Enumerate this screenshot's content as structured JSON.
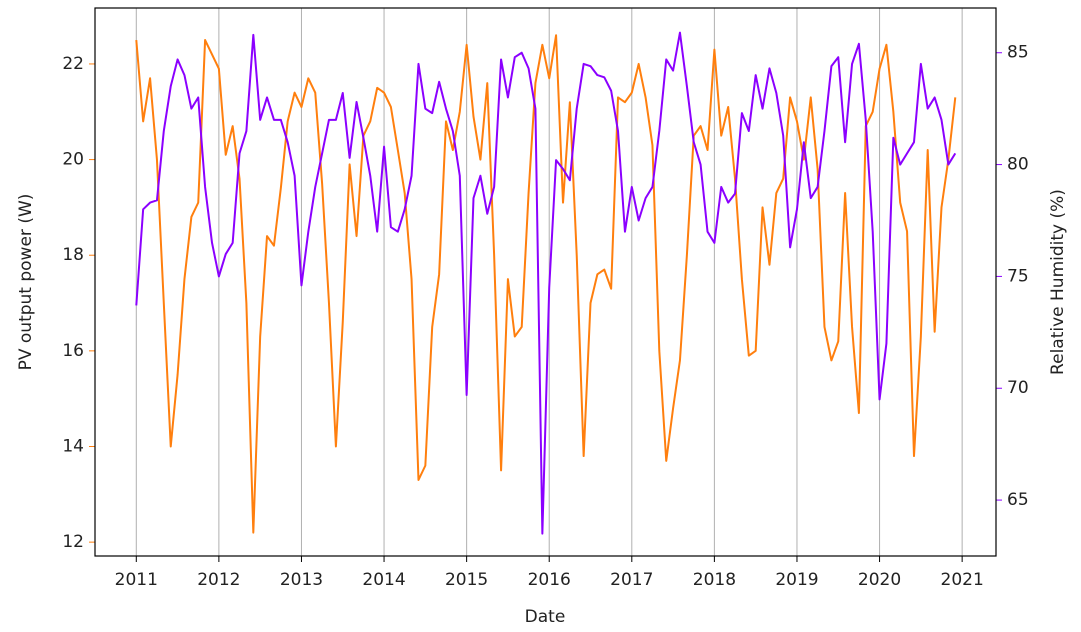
{
  "chart_data": {
    "type": "line",
    "xlabel": "Date",
    "ylabel": "PV output power (W)",
    "y2label": "Relative Humidity (%)",
    "x": [
      2011,
      2011.083,
      2011.167,
      2011.25,
      2011.333,
      2011.417,
      2011.5,
      2011.583,
      2011.667,
      2011.75,
      2011.833,
      2011.917,
      2012,
      2012.083,
      2012.167,
      2012.25,
      2012.333,
      2012.417,
      2012.5,
      2012.583,
      2012.667,
      2012.75,
      2012.833,
      2012.917,
      2013,
      2013.083,
      2013.167,
      2013.25,
      2013.333,
      2013.417,
      2013.5,
      2013.583,
      2013.667,
      2013.75,
      2013.833,
      2013.917,
      2014,
      2014.083,
      2014.167,
      2014.25,
      2014.333,
      2014.417,
      2014.5,
      2014.583,
      2014.667,
      2014.75,
      2014.833,
      2014.917,
      2015,
      2015.083,
      2015.167,
      2015.25,
      2015.333,
      2015.417,
      2015.5,
      2015.583,
      2015.667,
      2015.75,
      2015.833,
      2015.917,
      2016,
      2016.083,
      2016.167,
      2016.25,
      2016.333,
      2016.417,
      2016.5,
      2016.583,
      2016.667,
      2016.75,
      2016.833,
      2016.917,
      2017,
      2017.083,
      2017.167,
      2017.25,
      2017.333,
      2017.417,
      2017.5,
      2017.583,
      2017.667,
      2017.75,
      2017.833,
      2017.917,
      2018,
      2018.083,
      2018.167,
      2018.25,
      2018.333,
      2018.417,
      2018.5,
      2018.583,
      2018.667,
      2018.75,
      2018.833,
      2018.917,
      2019,
      2019.083,
      2019.167,
      2019.25,
      2019.333,
      2019.417,
      2019.5,
      2019.583,
      2019.667,
      2019.75,
      2019.833,
      2019.917,
      2020,
      2020.083,
      2020.167,
      2020.25,
      2020.333,
      2020.417,
      2020.5,
      2020.583,
      2020.667,
      2020.75,
      2020.833,
      2020.917
    ],
    "series": [
      {
        "color": "#ff7f0e",
        "axis": "y",
        "values": [
          22.5,
          20.8,
          21.7,
          20.0,
          17.0,
          14.0,
          15.5,
          17.5,
          18.8,
          19.1,
          22.5,
          22.2,
          21.9,
          20.1,
          20.7,
          19.6,
          17.0,
          12.2,
          16.3,
          18.4,
          18.2,
          19.4,
          20.8,
          21.4,
          21.1,
          21.7,
          21.4,
          19.5,
          17.0,
          14.0,
          16.6,
          19.9,
          18.4,
          20.5,
          20.8,
          21.5,
          21.4,
          21.1,
          20.2,
          19.3,
          17.5,
          13.3,
          13.6,
          16.5,
          17.6,
          20.8,
          20.2,
          21.0,
          22.4,
          20.9,
          20.0,
          21.6,
          18.0,
          13.5,
          17.5,
          16.3,
          16.5,
          19.3,
          21.6,
          22.4,
          21.7,
          22.6,
          19.1,
          21.2,
          18.0,
          13.8,
          17.0,
          17.6,
          17.7,
          17.3,
          21.3,
          21.2,
          21.4,
          22.0,
          21.3,
          20.3,
          16.0,
          13.7,
          14.8,
          15.8,
          18.0,
          20.5,
          20.7,
          20.2,
          22.3,
          20.5,
          21.1,
          19.6,
          17.5,
          15.9,
          16.0,
          19.0,
          17.8,
          19.3,
          19.6,
          21.3,
          20.8,
          20.0,
          21.3,
          19.8,
          16.5,
          15.8,
          16.2,
          19.3,
          16.5,
          14.7,
          20.7,
          21.0,
          21.9,
          22.4,
          21.0,
          19.1,
          18.5,
          13.8,
          16.3,
          20.2,
          16.4,
          19.0,
          20.0,
          21.3
        ]
      },
      {
        "color": "#8b00ff",
        "axis": "y2",
        "values": [
          73.7,
          78.0,
          78.3,
          78.4,
          81.5,
          83.5,
          84.7,
          84.0,
          82.5,
          83.0,
          79.0,
          76.5,
          75.0,
          76.0,
          76.5,
          80.5,
          81.5,
          85.8,
          82.0,
          83.0,
          82.0,
          82.0,
          81.0,
          79.5,
          74.6,
          77.0,
          79.0,
          80.5,
          82.0,
          82.0,
          83.2,
          80.3,
          82.8,
          81.2,
          79.5,
          77.0,
          80.8,
          77.2,
          77.0,
          78.0,
          79.5,
          84.5,
          82.5,
          82.3,
          83.7,
          82.5,
          81.5,
          79.5,
          69.7,
          78.5,
          79.5,
          77.8,
          79.0,
          84.7,
          83.0,
          84.8,
          85.0,
          84.3,
          82.5,
          63.5,
          74.5,
          80.2,
          79.8,
          79.3,
          82.5,
          84.5,
          84.4,
          84.0,
          83.9,
          83.3,
          81.5,
          77.0,
          79.0,
          77.5,
          78.5,
          79.0,
          81.5,
          84.7,
          84.2,
          85.9,
          83.5,
          81.0,
          80.0,
          77.0,
          76.5,
          79.0,
          78.3,
          78.7,
          82.3,
          81.5,
          84.0,
          82.5,
          84.3,
          83.2,
          81.3,
          76.3,
          78.0,
          81.0,
          78.5,
          79.0,
          81.5,
          84.4,
          84.8,
          81.0,
          84.5,
          85.4,
          82.0,
          77.0,
          69.5,
          72.0,
          81.2,
          80.0,
          80.5,
          81.0,
          84.5,
          82.5,
          83.0,
          82.0,
          80.0,
          80.5
        ]
      }
    ],
    "xlim": [
      2010.5,
      2021.41
    ],
    "xticks": [
      2011,
      2012,
      2013,
      2014,
      2015,
      2016,
      2017,
      2018,
      2019,
      2020,
      2021
    ],
    "ylim": [
      11.71,
      23.17
    ],
    "yticks": [
      12,
      14,
      16,
      18,
      20,
      22
    ],
    "y2lim": [
      62.5,
      87.0
    ],
    "y2ticks": [
      65,
      70,
      75,
      80,
      85
    ],
    "grid": "x"
  }
}
